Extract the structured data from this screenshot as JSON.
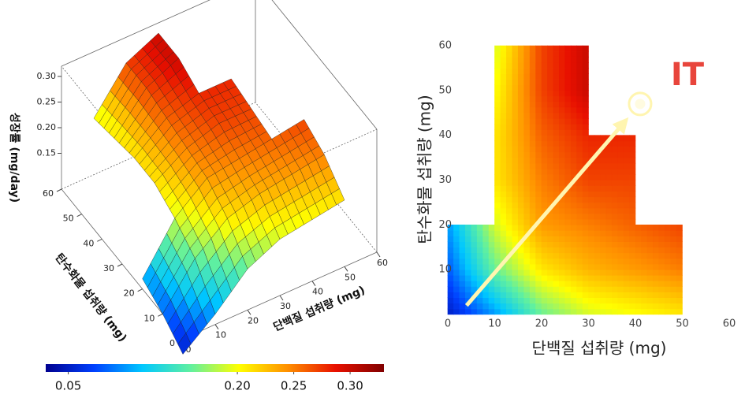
{
  "chart_data": [
    {
      "type": "surface",
      "xlabel": "단백질 섭취량 (mg)",
      "ylabel": "탄수화물 섭취량 (mg)",
      "zlabel": "성장률 (mg/day)",
      "x": [
        0,
        10,
        20,
        30,
        40,
        50,
        60
      ],
      "y": [
        0,
        10,
        20,
        30,
        40,
        50,
        60
      ],
      "z": [
        [
          0.05,
          0.1,
          0.16,
          0.19,
          0.2,
          0.21,
          null
        ],
        [
          0.08,
          0.16,
          0.21,
          0.23,
          0.24,
          0.25,
          null
        ],
        [
          0.1,
          0.19,
          0.24,
          0.25,
          0.26,
          0.27,
          null
        ],
        [
          null,
          0.21,
          0.25,
          0.27,
          0.27,
          null,
          null
        ],
        [
          null,
          0.21,
          0.26,
          0.28,
          0.28,
          null,
          null
        ],
        [
          null,
          0.2,
          0.27,
          0.3,
          null,
          null,
          null
        ],
        [
          null,
          0.19,
          0.27,
          0.3,
          null,
          null,
          null
        ]
      ],
      "xlim": [
        0,
        60
      ],
      "ylim": [
        0,
        60
      ],
      "zlim": [
        0.08,
        0.32
      ],
      "xticks": [
        0,
        10,
        20,
        30,
        40,
        50,
        60
      ],
      "yticks": [
        0,
        10,
        20,
        30,
        40,
        50,
        60
      ],
      "zticks": [
        0.15,
        {
          "value": 0.2,
          "label": "0.20"
        },
        0.25,
        {
          "value": 0.3,
          "label": "0.30"
        }
      ],
      "colormap": [
        "#00008f",
        "#0040ff",
        "#00c8ff",
        "#60f0a0",
        "#ffff00",
        "#ff9000",
        "#e81000",
        "#800000"
      ],
      "colorbar": {
        "lim": [
          0.03,
          0.33
        ],
        "ticks": [
          {
            "value": 0.05,
            "label": "0.05"
          },
          {
            "value": 0.2,
            "label": "0.20"
          },
          0.25,
          {
            "value": 0.3,
            "label": "0.30"
          }
        ]
      }
    },
    {
      "type": "contour",
      "xlabel": "단백질 섭취량 (mg)",
      "ylabel": "탄수화물 섭취량 (mg)",
      "annotation": "IT",
      "annotation_color": "#e8453c",
      "target": {
        "x": 41,
        "y": 47
      },
      "arrow_from": {
        "x": 4,
        "y": 2
      },
      "x": [
        0,
        10,
        20,
        30,
        40,
        50,
        60
      ],
      "y": [
        0,
        10,
        20,
        30,
        40,
        50,
        60
      ],
      "z": [
        [
          0.05,
          0.1,
          0.16,
          0.19,
          0.2,
          0.21,
          null
        ],
        [
          0.08,
          0.16,
          0.21,
          0.23,
          0.24,
          0.25,
          null
        ],
        [
          0.1,
          0.19,
          0.24,
          0.25,
          0.26,
          0.27,
          null
        ],
        [
          null,
          0.21,
          0.25,
          0.27,
          0.27,
          null,
          null
        ],
        [
          null,
          0.21,
          0.26,
          0.28,
          0.28,
          null,
          null
        ],
        [
          null,
          0.2,
          0.27,
          0.3,
          null,
          null,
          null
        ],
        [
          null,
          0.19,
          0.27,
          0.3,
          null,
          null,
          null
        ]
      ],
      "xlim": [
        0,
        60
      ],
      "ylim": [
        0,
        60
      ],
      "xticks": [
        0,
        10,
        20,
        30,
        40,
        50,
        60
      ],
      "yticks": [
        10,
        20,
        30,
        40,
        50,
        60
      ],
      "colormap": [
        "#00008f",
        "#0040ff",
        "#00c8ff",
        "#60f0a0",
        "#ffff00",
        "#ff9000",
        "#e81000",
        "#800000"
      ],
      "clim": [
        0.03,
        0.33
      ]
    }
  ]
}
